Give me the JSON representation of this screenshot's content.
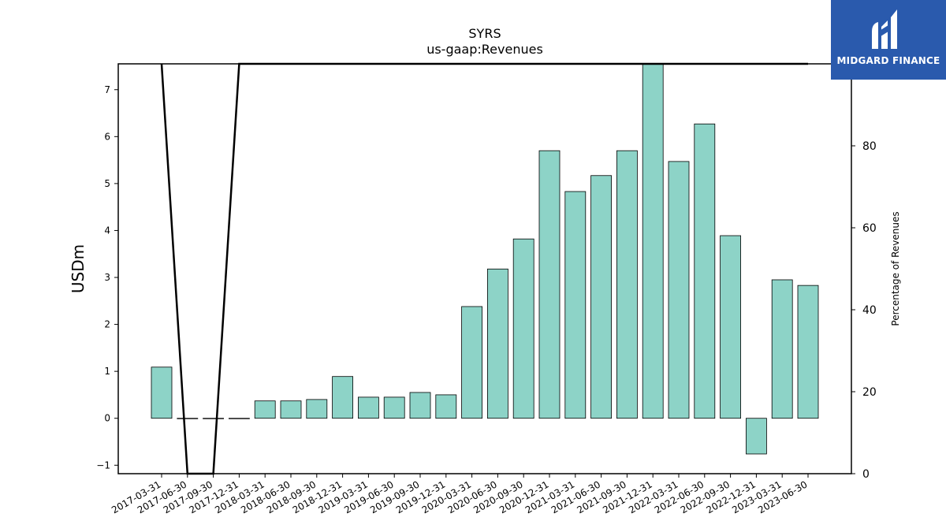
{
  "brand": {
    "name": "MIDGARD FINANCE",
    "color": "#2a5aad"
  },
  "chart_data": {
    "type": "bar",
    "title": "SYRS",
    "subtitle": "us-gaap:Revenues",
    "ylabel": "USDm",
    "y2label": "Percentage of Revenues",
    "ylim": [
      -1.18,
      7.55
    ],
    "y2lim": [
      0,
      100
    ],
    "yticks": [
      -1,
      0,
      1,
      2,
      3,
      4,
      5,
      6,
      7
    ],
    "y2ticks": [
      0,
      20,
      40,
      60,
      80,
      100
    ],
    "grid": false,
    "legend": "none",
    "bar_color": "#8dd3c7",
    "categories": [
      "2017-03-31",
      "2017-06-30",
      "2017-09-30",
      "2017-12-31",
      "2018-03-31",
      "2018-06-30",
      "2018-09-30",
      "2018-12-31",
      "2019-03-31",
      "2019-06-30",
      "2019-09-30",
      "2019-12-31",
      "2020-03-31",
      "2020-06-30",
      "2020-09-30",
      "2020-12-31",
      "2021-03-31",
      "2021-06-30",
      "2021-09-30",
      "2021-12-31",
      "2022-03-31",
      "2022-06-30",
      "2022-09-30",
      "2022-12-31",
      "2023-03-31",
      "2023-06-30"
    ],
    "series": [
      {
        "type": "bar",
        "axis": "left",
        "values": [
          1.09,
          0.0,
          0.0,
          0.0,
          0.37,
          0.37,
          0.4,
          0.89,
          0.45,
          0.45,
          0.55,
          0.5,
          2.38,
          3.18,
          3.82,
          5.7,
          4.83,
          5.17,
          5.7,
          7.55,
          5.47,
          6.27,
          3.89,
          -0.76,
          2.95,
          2.83
        ]
      },
      {
        "type": "line",
        "axis": "right",
        "color": "#000000",
        "values": [
          100,
          0,
          0,
          100,
          100,
          100,
          100,
          100,
          100,
          100,
          100,
          100,
          100,
          100,
          100,
          100,
          100,
          100,
          100,
          100,
          100,
          100,
          100,
          100,
          100,
          100
        ]
      }
    ]
  }
}
